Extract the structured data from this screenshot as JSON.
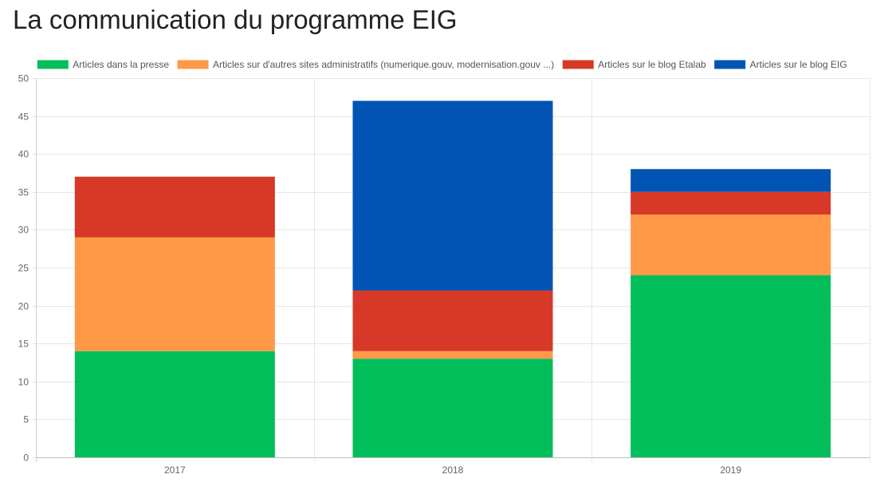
{
  "page": {
    "title": "La communication du programme EIG"
  },
  "chart_data": {
    "type": "bar",
    "stacked": true,
    "title": "La communication du programme EIG",
    "categories": [
      "2017",
      "2018",
      "2019"
    ],
    "series": [
      {
        "name": "Articles dans la presse",
        "color": "#02be5a",
        "values": [
          14,
          13,
          24
        ]
      },
      {
        "name": "Articles sur d'autres sites administratifs (numerique.gouv, modernisation.gouv ...)",
        "color": "#ff9947",
        "values": [
          15,
          1,
          8
        ]
      },
      {
        "name": "Articles sur le blog Etalab",
        "color": "#d73827",
        "values": [
          8,
          8,
          3
        ]
      },
      {
        "name": "Articles sur le blog EIG",
        "color": "#0154b4",
        "values": [
          0,
          25,
          3
        ]
      }
    ],
    "ylim": [
      0,
      50
    ],
    "yticks": [
      0,
      5,
      10,
      15,
      20,
      25,
      30,
      35,
      40,
      45,
      50
    ],
    "grid": true,
    "legend": "top"
  }
}
